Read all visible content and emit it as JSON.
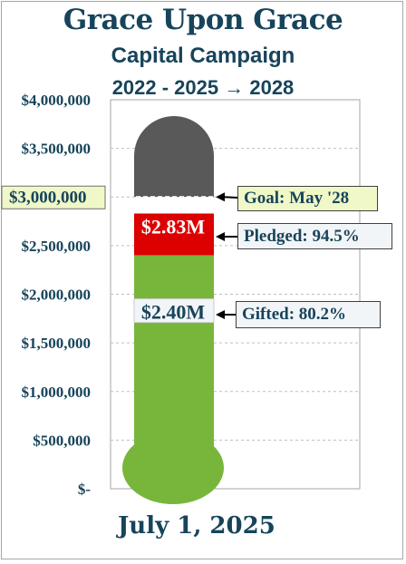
{
  "title": "Grace Upon Grace",
  "subtitle": "Capital Campaign",
  "years": "2022  -  2025 → 2028",
  "date": "July 1, 2025",
  "colors": {
    "title": "#17445b",
    "empty": "#595959",
    "pledged": "#dd0000",
    "gifted": "#77b63a",
    "goal_highlight": "#f0f8c8"
  },
  "chart_data": {
    "type": "bar",
    "title": "Grace Upon Grace",
    "ylim": [
      0,
      4000000
    ],
    "y_ticks": [
      "$-",
      "$500,000",
      "$1,000,000",
      "$1,500,000",
      "$2,000,000",
      "$2,500,000",
      "$3,000,000",
      "$3,500,000",
      "$4,000,000"
    ],
    "goal_value": 3000000,
    "pledged_value": 2830000,
    "gifted_value": 2400000,
    "pledged_label": "$2.83M",
    "gifted_label": "$2.40M",
    "pledged_percent": 94.5,
    "gifted_percent": 80.2,
    "annotations": {
      "goal": "Goal: May '28",
      "pledged": "Pledged: 94.5%",
      "gifted": "Gifted: 80.2%"
    }
  }
}
